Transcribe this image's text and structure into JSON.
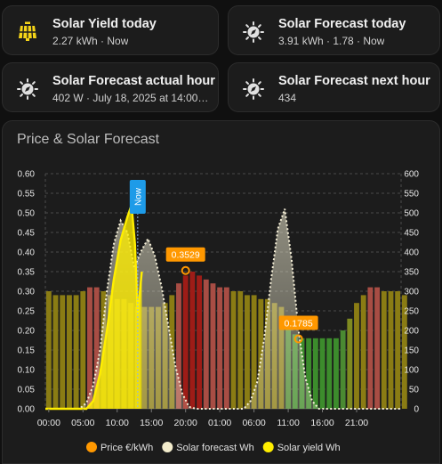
{
  "tiles": [
    {
      "name": "Solar Yield today",
      "state": "2.27 kWh · Now",
      "icon": "solar-panel-icon",
      "icon_color": "#f5d418"
    },
    {
      "name": "Solar Forecast today",
      "state": "3.91 kWh · 1.78 · Now",
      "icon": "solar-compass-icon",
      "icon_color": "#e0e0e0"
    },
    {
      "name": "Solar Forecast actual hour",
      "state": "402 W · July 18, 2025 at 14:00…",
      "icon": "solar-compass-icon",
      "icon_color": "#e0e0e0"
    },
    {
      "name": "Solar Forecast next hour",
      "state": "434",
      "icon": "solar-compass-icon",
      "icon_color": "#e0e0e0"
    }
  ],
  "card": {
    "title": "Price & Solar Forecast"
  },
  "chart_data": {
    "type": "bar+area",
    "x_tick_labels": [
      "00:00",
      "05:00",
      "10:00",
      "15:00",
      "20:00",
      "01:00",
      "06:00",
      "11:00",
      "16:00",
      "21:00"
    ],
    "y_left": {
      "ticks": [
        "0.00",
        "0.05",
        "0.10",
        "0.15",
        "0.20",
        "0.25",
        "0.30",
        "0.35",
        "0.40",
        "0.45",
        "0.50",
        "0.55",
        "0.60"
      ],
      "ylim": [
        0,
        0.6
      ]
    },
    "y_right": {
      "ticks": [
        "0",
        "50",
        "100",
        "150",
        "200",
        "250",
        "300",
        "350",
        "400",
        "450",
        "500",
        "550",
        "600"
      ],
      "ylim": [
        0,
        600
      ]
    },
    "now_label": "Now",
    "now_hour": 13.5,
    "series": [
      {
        "name": "Price €/kWh",
        "color": "#ff9800",
        "values": [
          0.3,
          0.29,
          0.29,
          0.29,
          0.29,
          0.3,
          0.31,
          0.31,
          0.3,
          0.29,
          0.28,
          0.28,
          0.27,
          0.26,
          0.26,
          0.26,
          0.26,
          0.27,
          0.29,
          0.32,
          0.34,
          0.35,
          0.34,
          0.33,
          0.32,
          0.31,
          0.31,
          0.3,
          0.3,
          0.29,
          0.29,
          0.28,
          0.28,
          0.27,
          0.26,
          0.21,
          0.19,
          0.18,
          0.18,
          0.18,
          0.18,
          0.18,
          0.18,
          0.2,
          0.23,
          0.27,
          0.29,
          0.31,
          0.31,
          0.3,
          0.3,
          0.3,
          0.29
        ]
      },
      {
        "name": "Solar forecast Wh",
        "color": "#f3eccc",
        "points": [
          [
            0,
            0
          ],
          [
            5,
            0
          ],
          [
            6,
            15
          ],
          [
            7,
            60
          ],
          [
            8,
            150
          ],
          [
            9,
            300
          ],
          [
            10,
            420
          ],
          [
            11,
            480
          ],
          [
            12,
            450
          ],
          [
            13,
            360
          ],
          [
            14,
            402
          ],
          [
            15,
            434
          ],
          [
            16,
            390
          ],
          [
            17,
            310
          ],
          [
            18,
            210
          ],
          [
            19,
            110
          ],
          [
            20,
            40
          ],
          [
            21,
            5
          ],
          [
            22,
            0
          ],
          [
            29,
            0
          ],
          [
            30,
            20
          ],
          [
            31,
            70
          ],
          [
            32,
            180
          ],
          [
            33,
            330
          ],
          [
            34,
            460
          ],
          [
            35,
            510
          ],
          [
            36,
            380
          ],
          [
            37,
            200
          ],
          [
            38,
            80
          ],
          [
            39,
            20
          ],
          [
            40,
            0
          ],
          [
            48,
            0
          ],
          [
            52,
            0
          ]
        ]
      },
      {
        "name": "Solar yield Wh",
        "color": "#ffee00",
        "points": [
          [
            0,
            0
          ],
          [
            6,
            0
          ],
          [
            7,
            20
          ],
          [
            8,
            90
          ],
          [
            9,
            200
          ],
          [
            10,
            330
          ],
          [
            11,
            430
          ],
          [
            12,
            490
          ],
          [
            12.6,
            520
          ],
          [
            13.1,
            420
          ],
          [
            13.5,
            240
          ],
          [
            14.1,
            350
          ]
        ]
      }
    ],
    "annotations": [
      {
        "label": "0.3529",
        "x": 20.5,
        "y": 0.3529,
        "color": "#ff9800"
      },
      {
        "label": "0.1785",
        "x": 37,
        "y": 0.1785,
        "color": "#ff9800"
      }
    ],
    "legend": {
      "placement": "bottom"
    },
    "grid": true
  }
}
